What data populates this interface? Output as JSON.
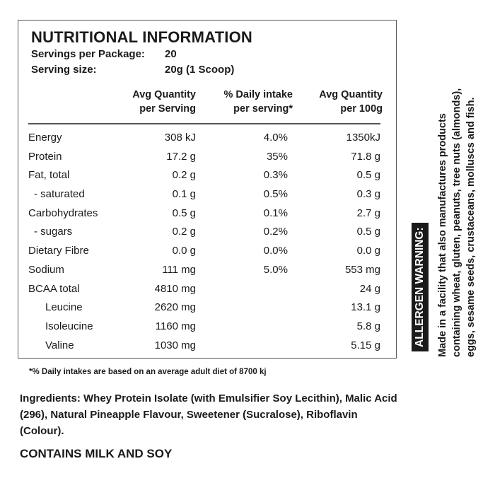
{
  "title": "NUTRITIONAL INFORMATION",
  "servings_per_package": {
    "label": "Servings per Package:",
    "value": "20"
  },
  "serving_size": {
    "label": "Serving size:",
    "value": "20g (1 Scoop)"
  },
  "headers": {
    "per_serving": [
      "Avg Quantity",
      "per Serving"
    ],
    "daily_intake": [
      "% Daily intake",
      "per serving*"
    ],
    "per_100g": [
      "Avg Quantity",
      "per 100g"
    ]
  },
  "rows": [
    {
      "label": "Energy",
      "indent": 0,
      "serving": "308 kJ",
      "daily": "4.0%",
      "per100": "1350kJ"
    },
    {
      "label": "Protein",
      "indent": 0,
      "serving": "17.2 g",
      "daily": "35%",
      "per100": "71.8 g"
    },
    {
      "label": "Fat, total",
      "indent": 0,
      "serving": "0.2 g",
      "daily": "0.3%",
      "per100": "0.5 g"
    },
    {
      "label": "- saturated",
      "indent": 1,
      "serving": "0.1 g",
      "daily": "0.5%",
      "per100": "0.3 g"
    },
    {
      "label": "Carbohydrates",
      "indent": 0,
      "serving": "0.5 g",
      "daily": "0.1%",
      "per100": "2.7 g"
    },
    {
      "label": "- sugars",
      "indent": 1,
      "serving": "0.2 g",
      "daily": "0.2%",
      "per100": "0.5 g"
    },
    {
      "label": "Dietary Fibre",
      "indent": 0,
      "serving": "0.0 g",
      "daily": "0.0%",
      "per100": "0.0 g"
    },
    {
      "label": "Sodium",
      "indent": 0,
      "serving": "111 mg",
      "daily": "5.0%",
      "per100": "553 mg"
    },
    {
      "label": "BCAA total",
      "indent": 0,
      "serving": "4810 mg",
      "daily": "",
      "per100": "24 g"
    },
    {
      "label": "Leucine",
      "indent": 2,
      "serving": "2620 mg",
      "daily": "",
      "per100": "13.1 g"
    },
    {
      "label": "Isoleucine",
      "indent": 2,
      "serving": "1160 mg",
      "daily": "",
      "per100": "5.8 g"
    },
    {
      "label": "Valine",
      "indent": 2,
      "serving": "1030 mg",
      "daily": "",
      "per100": "5.15 g"
    }
  ],
  "footnote": "*% Daily intakes are based on an average adult diet of 8700 kj",
  "ingredients": "Ingredients: Whey Protein Isolate (with Emulsifier Soy Lecithin), Malic Acid (296), Natural Pineapple Flavour, Sweetener (Sucralose), Riboflavin (Colour).",
  "contains": "CONTAINS MILK AND SOY",
  "allergen": {
    "label": "ALLERGEN WARNING:",
    "lines": [
      "Made in a facility that also manufactures products",
      "containing wheat, gluten, peanuts, tree nuts (almonds),",
      "eggs, sesame seeds, crustaceans, molluscs and fish."
    ]
  }
}
